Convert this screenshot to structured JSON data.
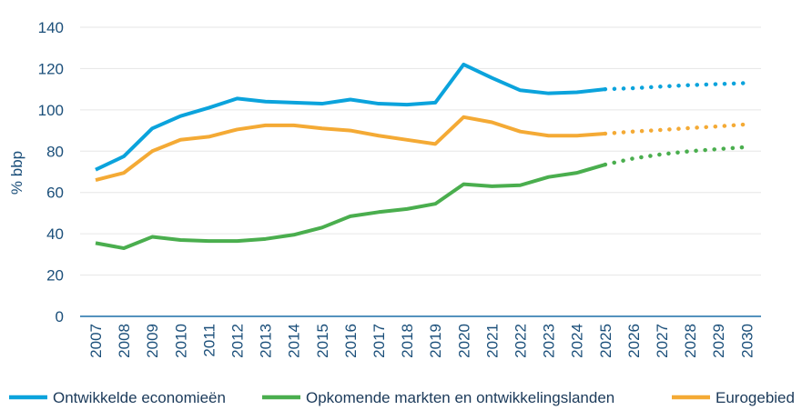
{
  "chart_data": {
    "type": "line",
    "title": "",
    "xlabel": "",
    "ylabel": "% bbp",
    "ylim": [
      0,
      140
    ],
    "yticks": [
      "0",
      "20",
      "40",
      "60",
      "80",
      "100",
      "120",
      "140"
    ],
    "categories": [
      "2007",
      "2008",
      "2009",
      "2010",
      "2011",
      "2012",
      "2013",
      "2014",
      "2015",
      "2016",
      "2017",
      "2018",
      "2019",
      "2020",
      "2021",
      "2022",
      "2023",
      "2024",
      "2025",
      "2026",
      "2027",
      "2028",
      "2029",
      "2030"
    ],
    "forecast_from": "2025",
    "grid": true,
    "legend_position": "bottom",
    "series": [
      {
        "name": "Ontwikkelde economieën",
        "color": "#0ba3dc",
        "values": [
          71,
          77.5,
          91,
          97,
          101,
          105.5,
          104,
          103.5,
          103,
          105,
          103,
          102.5,
          103.5,
          122,
          115.5,
          109.5,
          108,
          108.5,
          110,
          110.5,
          111.3,
          112,
          112.5,
          113
        ]
      },
      {
        "name": "Opkomende markten en ontwikkelingslanden",
        "color": "#4aae4e",
        "values": [
          35.5,
          33,
          38.5,
          37,
          36.5,
          36.5,
          37.5,
          39.5,
          43,
          48.5,
          50.5,
          52,
          54.5,
          64,
          63,
          63.5,
          67.5,
          69.5,
          73.5,
          76.5,
          78.5,
          80,
          81,
          82
        ]
      },
      {
        "name": "Eurogebied",
        "color": "#f4aa35",
        "values": [
          66,
          69.5,
          80,
          85.5,
          87,
          90.5,
          92.5,
          92.5,
          91,
          90,
          87.5,
          85.5,
          83.5,
          96.5,
          94,
          89.5,
          87.5,
          87.5,
          88.5,
          89.5,
          90.3,
          91.2,
          92,
          93
        ]
      }
    ]
  }
}
